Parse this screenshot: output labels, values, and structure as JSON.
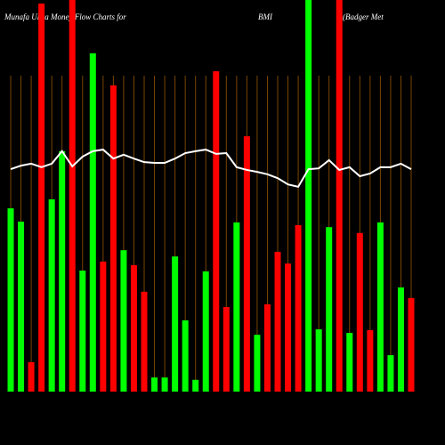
{
  "chart_data": {
    "type": "bar",
    "title": "Munafa Ultra Money Flow Charts for",
    "symbol": "BMI",
    "company": "(Badger Met",
    "categories": [
      null,
      null,
      null,
      null,
      null,
      null,
      null,
      null,
      null,
      null,
      null,
      null,
      null,
      null,
      null,
      null,
      null,
      null,
      null,
      null,
      null,
      null,
      null,
      null,
      null,
      null,
      null,
      null,
      null,
      null,
      null,
      null,
      null,
      null,
      null,
      null,
      null,
      null,
      null,
      null
    ],
    "values": [
      46.8,
      43.4,
      7.5,
      99.1,
      49.1,
      61.4,
      100,
      30.9,
      86.4,
      33.2,
      78.2,
      36.1,
      32.3,
      25.5,
      3.6,
      3.6,
      34.5,
      18.2,
      3.0,
      30.7,
      81.8,
      21.6,
      43.2,
      65.2,
      14.5,
      22.3,
      35.7,
      32.7,
      42.5,
      100,
      15.9,
      42.0,
      100,
      15.0,
      40.5,
      15.7,
      43.2,
      9.3,
      26.6,
      23.9
    ],
    "bar_colors": [
      "#00ff00",
      "#00ff00",
      "#ff0000",
      "#ff0000",
      "#00ff00",
      "#00ff00",
      "#ff0000",
      "#00ff00",
      "#00ff00",
      "#ff0000",
      "#ff0000",
      "#00ff00",
      "#ff0000",
      "#ff0000",
      "#00ff00",
      "#00ff00",
      "#00ff00",
      "#00ff00",
      "#00ff00",
      "#00ff00",
      "#ff0000",
      "#ff0000",
      "#00ff00",
      "#ff0000",
      "#00ff00",
      "#ff0000",
      "#ff0000",
      "#ff0000",
      "#ff0000",
      "#00ff00",
      "#00ff00",
      "#00ff00",
      "#ff0000",
      "#00ff00",
      "#ff0000",
      "#ff0000",
      "#00ff00",
      "#00ff00",
      "#00ff00",
      "#ff0000"
    ],
    "line": {
      "color": "#ffffff",
      "values": [
        56.8,
        57.7,
        58.2,
        57.3,
        58.2,
        61.4,
        57.5,
        60.0,
        61.4,
        61.8,
        59.5,
        60.5,
        59.5,
        58.6,
        58.4,
        58.4,
        59.5,
        60.9,
        61.4,
        61.8,
        60.7,
        60.9,
        57.3,
        56.6,
        56.1,
        55.5,
        54.5,
        52.9,
        52.3,
        56.8,
        57.0,
        59.1,
        56.6,
        57.3,
        55.0,
        55.7,
        57.3,
        57.3,
        58.2,
        56.8
      ]
    },
    "ylim": [
      0,
      100
    ],
    "grid": true,
    "grid_color": "#7a4500"
  }
}
